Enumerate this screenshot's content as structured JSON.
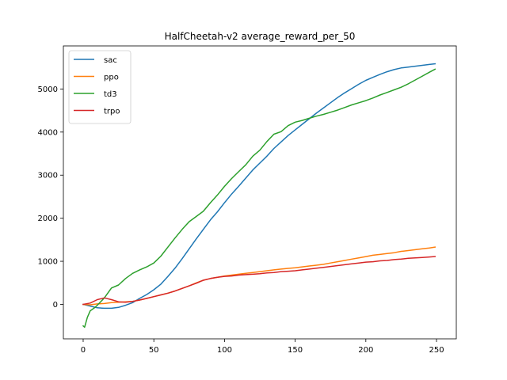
{
  "chart_data": {
    "type": "line",
    "title": "HalfCheetah-v2 average_reward_per_50",
    "xlabel": "",
    "ylabel": "",
    "xlim": [
      -14,
      264
    ],
    "ylim": [
      -800,
      6000
    ],
    "xticks": [
      0,
      50,
      100,
      150,
      200,
      250
    ],
    "yticks": [
      0,
      1000,
      2000,
      3000,
      4000,
      5000
    ],
    "grid": false,
    "legend": "top-left",
    "series": [
      {
        "name": "sac",
        "color": "#1f77b4",
        "points": [
          [
            0,
            0
          ],
          [
            5,
            -40
          ],
          [
            10,
            -80
          ],
          [
            15,
            -90
          ],
          [
            20,
            -90
          ],
          [
            25,
            -70
          ],
          [
            30,
            -20
          ],
          [
            35,
            40
          ],
          [
            40,
            140
          ],
          [
            45,
            230
          ],
          [
            50,
            340
          ],
          [
            55,
            470
          ],
          [
            60,
            650
          ],
          [
            65,
            840
          ],
          [
            70,
            1060
          ],
          [
            75,
            1290
          ],
          [
            80,
            1520
          ],
          [
            85,
            1740
          ],
          [
            90,
            1960
          ],
          [
            95,
            2150
          ],
          [
            100,
            2360
          ],
          [
            105,
            2560
          ],
          [
            110,
            2740
          ],
          [
            115,
            2930
          ],
          [
            120,
            3120
          ],
          [
            125,
            3280
          ],
          [
            130,
            3440
          ],
          [
            135,
            3620
          ],
          [
            140,
            3770
          ],
          [
            145,
            3920
          ],
          [
            150,
            4050
          ],
          [
            155,
            4180
          ],
          [
            160,
            4310
          ],
          [
            165,
            4440
          ],
          [
            170,
            4560
          ],
          [
            175,
            4680
          ],
          [
            180,
            4800
          ],
          [
            185,
            4910
          ],
          [
            190,
            5010
          ],
          [
            195,
            5110
          ],
          [
            200,
            5200
          ],
          [
            205,
            5270
          ],
          [
            210,
            5340
          ],
          [
            215,
            5400
          ],
          [
            220,
            5450
          ],
          [
            225,
            5490
          ],
          [
            230,
            5510
          ],
          [
            235,
            5530
          ],
          [
            240,
            5550
          ],
          [
            245,
            5570
          ],
          [
            249,
            5585
          ]
        ]
      },
      {
        "name": "ppo",
        "color": "#ff7f0e",
        "points": [
          [
            0,
            0
          ],
          [
            5,
            -10
          ],
          [
            10,
            10
          ],
          [
            15,
            20
          ],
          [
            20,
            40
          ],
          [
            25,
            50
          ],
          [
            30,
            60
          ],
          [
            35,
            70
          ],
          [
            40,
            100
          ],
          [
            45,
            140
          ],
          [
            50,
            180
          ],
          [
            55,
            220
          ],
          [
            60,
            260
          ],
          [
            65,
            310
          ],
          [
            70,
            370
          ],
          [
            75,
            430
          ],
          [
            80,
            500
          ],
          [
            85,
            560
          ],
          [
            90,
            600
          ],
          [
            95,
            630
          ],
          [
            100,
            660
          ],
          [
            105,
            680
          ],
          [
            110,
            700
          ],
          [
            115,
            720
          ],
          [
            120,
            740
          ],
          [
            125,
            760
          ],
          [
            130,
            780
          ],
          [
            135,
            800
          ],
          [
            140,
            820
          ],
          [
            145,
            835
          ],
          [
            150,
            850
          ],
          [
            155,
            870
          ],
          [
            160,
            890
          ],
          [
            165,
            910
          ],
          [
            170,
            930
          ],
          [
            175,
            960
          ],
          [
            180,
            990
          ],
          [
            185,
            1020
          ],
          [
            190,
            1050
          ],
          [
            195,
            1080
          ],
          [
            200,
            1110
          ],
          [
            205,
            1140
          ],
          [
            210,
            1160
          ],
          [
            215,
            1180
          ],
          [
            220,
            1200
          ],
          [
            225,
            1230
          ],
          [
            230,
            1250
          ],
          [
            235,
            1270
          ],
          [
            240,
            1290
          ],
          [
            245,
            1310
          ],
          [
            249,
            1330
          ]
        ]
      },
      {
        "name": "td3",
        "color": "#2ca02c",
        "points": [
          [
            0,
            -500
          ],
          [
            1,
            -530
          ],
          [
            3,
            -300
          ],
          [
            5,
            -150
          ],
          [
            8,
            -80
          ],
          [
            10,
            -20
          ],
          [
            15,
            150
          ],
          [
            20,
            380
          ],
          [
            25,
            450
          ],
          [
            30,
            600
          ],
          [
            35,
            720
          ],
          [
            40,
            800
          ],
          [
            45,
            870
          ],
          [
            50,
            960
          ],
          [
            55,
            1120
          ],
          [
            60,
            1330
          ],
          [
            65,
            1540
          ],
          [
            70,
            1740
          ],
          [
            75,
            1920
          ],
          [
            80,
            2040
          ],
          [
            85,
            2160
          ],
          [
            90,
            2360
          ],
          [
            95,
            2540
          ],
          [
            100,
            2740
          ],
          [
            105,
            2920
          ],
          [
            110,
            3080
          ],
          [
            115,
            3240
          ],
          [
            120,
            3440
          ],
          [
            125,
            3580
          ],
          [
            130,
            3780
          ],
          [
            135,
            3950
          ],
          [
            140,
            4010
          ],
          [
            145,
            4150
          ],
          [
            150,
            4230
          ],
          [
            155,
            4270
          ],
          [
            160,
            4320
          ],
          [
            165,
            4370
          ],
          [
            170,
            4410
          ],
          [
            175,
            4460
          ],
          [
            180,
            4510
          ],
          [
            185,
            4570
          ],
          [
            190,
            4630
          ],
          [
            195,
            4680
          ],
          [
            200,
            4730
          ],
          [
            205,
            4790
          ],
          [
            210,
            4860
          ],
          [
            215,
            4920
          ],
          [
            220,
            4980
          ],
          [
            225,
            5040
          ],
          [
            230,
            5120
          ],
          [
            235,
            5210
          ],
          [
            240,
            5300
          ],
          [
            245,
            5390
          ],
          [
            249,
            5460
          ]
        ]
      },
      {
        "name": "trpo",
        "color": "#d62728",
        "points": [
          [
            0,
            0
          ],
          [
            5,
            30
          ],
          [
            10,
            110
          ],
          [
            15,
            150
          ],
          [
            20,
            110
          ],
          [
            25,
            60
          ],
          [
            30,
            50
          ],
          [
            35,
            70
          ],
          [
            40,
            100
          ],
          [
            45,
            140
          ],
          [
            50,
            180
          ],
          [
            55,
            220
          ],
          [
            60,
            260
          ],
          [
            65,
            310
          ],
          [
            70,
            370
          ],
          [
            75,
            430
          ],
          [
            80,
            490
          ],
          [
            85,
            560
          ],
          [
            90,
            600
          ],
          [
            95,
            630
          ],
          [
            100,
            650
          ],
          [
            105,
            660
          ],
          [
            110,
            680
          ],
          [
            115,
            690
          ],
          [
            120,
            700
          ],
          [
            125,
            710
          ],
          [
            130,
            730
          ],
          [
            135,
            740
          ],
          [
            140,
            760
          ],
          [
            145,
            770
          ],
          [
            150,
            780
          ],
          [
            155,
            800
          ],
          [
            160,
            820
          ],
          [
            165,
            840
          ],
          [
            170,
            860
          ],
          [
            175,
            880
          ],
          [
            180,
            900
          ],
          [
            185,
            920
          ],
          [
            190,
            940
          ],
          [
            195,
            960
          ],
          [
            200,
            980
          ],
          [
            205,
            990
          ],
          [
            210,
            1010
          ],
          [
            215,
            1020
          ],
          [
            220,
            1040
          ],
          [
            225,
            1050
          ],
          [
            230,
            1070
          ],
          [
            235,
            1080
          ],
          [
            240,
            1090
          ],
          [
            245,
            1100
          ],
          [
            249,
            1110
          ]
        ]
      }
    ]
  }
}
